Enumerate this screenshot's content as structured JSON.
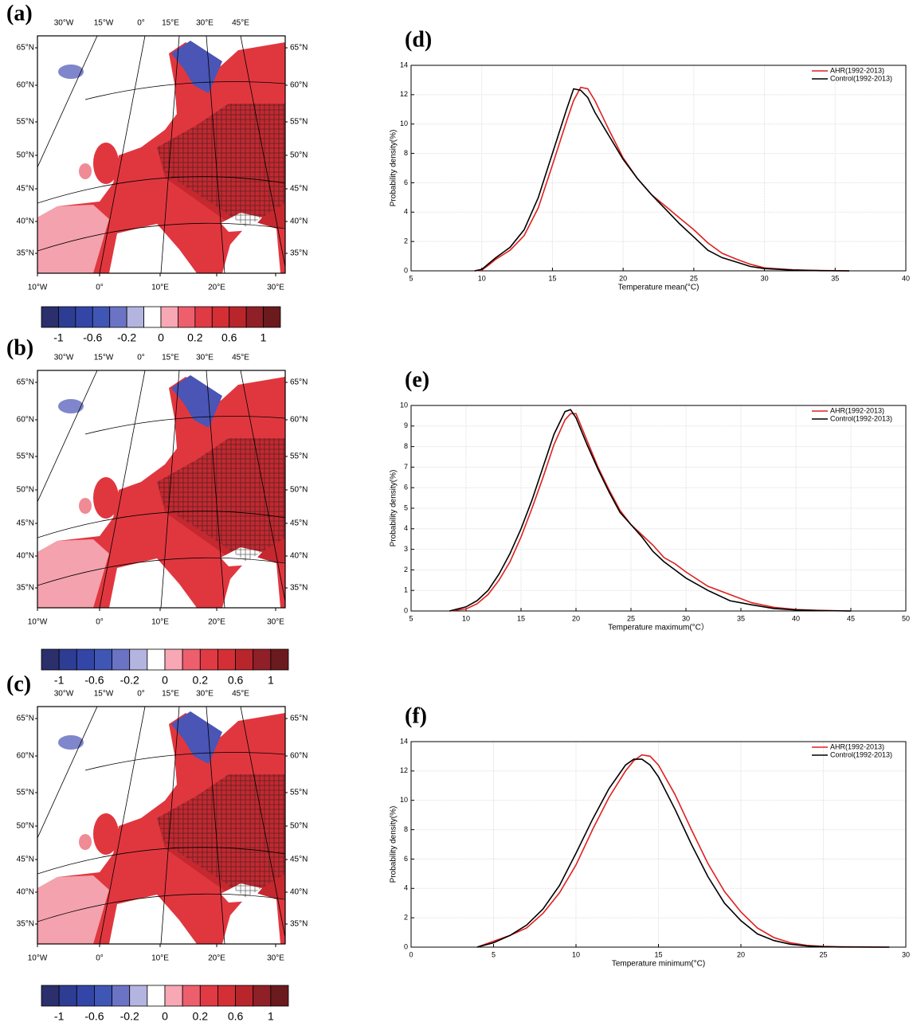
{
  "chart_data": [
    {
      "type": "map",
      "panel": "(a)",
      "lon_labels_top": [
        "30°W",
        "15°W",
        "0°",
        "15°E",
        "30°E",
        "45°E"
      ],
      "lon_labels_bottom": [
        "10°W",
        "0°",
        "10°E",
        "20°E",
        "30°E"
      ],
      "lat_labels": [
        "65°N",
        "60°N",
        "55°N",
        "50°N",
        "45°N",
        "40°N",
        "35°N"
      ],
      "colorbar": {
        "colors": [
          "#2b2f6b",
          "#2e3d94",
          "#3346a8",
          "#3f56b5",
          "#6b74c4",
          "#b4b4e0",
          "#ffffff",
          "#f7a8b4",
          "#ee5f6e",
          "#e03a44",
          "#d32f35",
          "#b8262c",
          "#8f2027",
          "#6b1a1e"
        ],
        "ticks": [
          -1,
          -0.6,
          -0.2,
          0,
          0.2,
          0.6,
          1
        ]
      }
    },
    {
      "type": "map",
      "panel": "(b)",
      "lon_labels_top": [
        "30°W",
        "15°W",
        "0°",
        "15°E",
        "30°E",
        "45°E"
      ],
      "lon_labels_bottom": [
        "10°W",
        "0°",
        "10°E",
        "20°E",
        "30°E"
      ],
      "lat_labels": [
        "65°N",
        "60°N",
        "55°N",
        "50°N",
        "45°N",
        "40°N",
        "35°N"
      ],
      "colorbar": {
        "colors": [
          "#2b2f6b",
          "#2e3d94",
          "#3346a8",
          "#3f56b5",
          "#6b74c4",
          "#b4b4e0",
          "#ffffff",
          "#f7a8b4",
          "#ee5f6e",
          "#e03a44",
          "#d32f35",
          "#b8262c",
          "#8f2027",
          "#6b1a1e"
        ],
        "ticks": [
          -1,
          -0.6,
          -0.2,
          0,
          0.2,
          0.6,
          1
        ]
      }
    },
    {
      "type": "map",
      "panel": "(c)",
      "lon_labels_top": [
        "30°W",
        "15°W",
        "0°",
        "15°E",
        "30°E",
        "45°E"
      ],
      "lon_labels_bottom": [
        "10°W",
        "0°",
        "10°E",
        "20°E",
        "30°E"
      ],
      "lat_labels": [
        "65°N",
        "60°N",
        "55°N",
        "50°N",
        "45°N",
        "40°N",
        "35°N"
      ],
      "colorbar": {
        "colors": [
          "#2b2f6b",
          "#2e3d94",
          "#3346a8",
          "#3f56b5",
          "#6b74c4",
          "#b4b4e0",
          "#ffffff",
          "#f7a8b4",
          "#ee5f6e",
          "#e03a44",
          "#d32f35",
          "#b8262c",
          "#8f2027",
          "#6b1a1e"
        ],
        "ticks": [
          -1,
          -0.6,
          -0.2,
          0,
          0.2,
          0.6,
          1
        ]
      }
    },
    {
      "type": "line",
      "panel": "(d)",
      "x_label": "Temperature mean(°C)",
      "y_label": "Probability density(%)",
      "x": [
        9.5,
        10,
        10.5,
        11,
        12,
        13,
        14,
        15,
        16,
        16.5,
        17,
        17.5,
        18,
        19,
        20,
        21,
        22,
        23,
        24,
        25,
        26,
        27,
        28,
        29,
        30,
        32,
        34,
        36
      ],
      "series": [
        {
          "name": "AHR(1992-2013)",
          "color": "#e02020",
          "values": [
            0,
            0.05,
            0.4,
            0.8,
            1.4,
            2.4,
            4.3,
            7.2,
            10.2,
            11.6,
            12.5,
            12.4,
            11.6,
            9.6,
            7.7,
            6.3,
            5.2,
            4.4,
            3.6,
            2.8,
            1.9,
            1.2,
            0.8,
            0.45,
            0.2,
            0.07,
            0.02,
            0
          ]
        },
        {
          "name": "Control(1992-2013)",
          "color": "#000000",
          "values": [
            0,
            0.1,
            0.5,
            0.9,
            1.6,
            2.8,
            5,
            8,
            11,
            12.4,
            12.3,
            11.8,
            10.8,
            9.2,
            7.6,
            6.3,
            5.2,
            4.2,
            3.2,
            2.3,
            1.4,
            0.9,
            0.6,
            0.3,
            0.15,
            0.05,
            0.01,
            0
          ]
        }
      ],
      "xlim": [
        5,
        40
      ],
      "xticks": [
        5,
        10,
        15,
        20,
        25,
        30,
        35,
        40
      ],
      "ylim": [
        0,
        14
      ],
      "yticks": [
        0,
        2,
        4,
        6,
        8,
        10,
        12,
        14
      ],
      "grid": true,
      "legend": "top-right"
    },
    {
      "type": "line",
      "panel": "(e)",
      "x_label": "Temperature maximum(°C）",
      "y_label": "Probability density(%)",
      "x": [
        8.5,
        10,
        11,
        12,
        13,
        14,
        15,
        16,
        17,
        18,
        19,
        19.5,
        20,
        21,
        22,
        23,
        24,
        25,
        26,
        27,
        28,
        29,
        30,
        32,
        34,
        36,
        38,
        40,
        42,
        45
      ],
      "series": [
        {
          "name": "AHR(1992-2013)",
          "color": "#e02020",
          "values": [
            0,
            0.1,
            0.35,
            0.8,
            1.5,
            2.4,
            3.6,
            5,
            6.5,
            8.1,
            9.3,
            9.6,
            9.6,
            8.3,
            7,
            5.9,
            4.9,
            4.2,
            3.7,
            3.2,
            2.6,
            2.3,
            1.9,
            1.2,
            0.8,
            0.4,
            0.18,
            0.07,
            0.03,
            0
          ]
        },
        {
          "name": "Control(1992-2013)",
          "color": "#000000",
          "values": [
            0,
            0.2,
            0.5,
            1,
            1.8,
            2.8,
            4,
            5.4,
            7,
            8.6,
            9.7,
            9.8,
            9.4,
            8.1,
            6.9,
            5.8,
            4.8,
            4.2,
            3.6,
            2.9,
            2.4,
            2,
            1.6,
            1,
            0.5,
            0.3,
            0.12,
            0.05,
            0.02,
            0
          ]
        }
      ],
      "xlim": [
        5,
        50
      ],
      "xticks": [
        5,
        10,
        15,
        20,
        25,
        30,
        35,
        40,
        45,
        50
      ],
      "ylim": [
        0,
        10
      ],
      "yticks": [
        0,
        1,
        2,
        3,
        4,
        5,
        6,
        7,
        8,
        9,
        10
      ],
      "grid": true,
      "legend": "top-right"
    },
    {
      "type": "line",
      "panel": "(f)",
      "x_label": "Temperature minimum(°C)",
      "y_label": "Probability density(%)",
      "x": [
        4,
        5,
        6,
        7,
        8,
        9,
        10,
        11,
        12,
        13,
        13.5,
        14,
        14.5,
        15,
        16,
        17,
        18,
        19,
        20,
        21,
        22,
        23,
        24,
        25,
        26,
        28,
        29
      ],
      "series": [
        {
          "name": "AHR(1992-2013)",
          "color": "#e02020",
          "values": [
            0,
            0.4,
            0.8,
            1.3,
            2.3,
            3.7,
            5.6,
            8,
            10.2,
            12,
            12.7,
            13.1,
            13,
            12.4,
            10.4,
            8,
            5.7,
            3.8,
            2.4,
            1.3,
            0.65,
            0.3,
            0.12,
            0.05,
            0.02,
            0.01,
            0
          ]
        },
        {
          "name": "Control(1992-2013)",
          "color": "#000000",
          "values": [
            0,
            0.3,
            0.8,
            1.5,
            2.6,
            4.2,
            6.4,
            8.7,
            10.8,
            12.4,
            12.8,
            12.8,
            12.4,
            11.6,
            9.4,
            7,
            4.8,
            3,
            1.8,
            0.9,
            0.45,
            0.2,
            0.08,
            0.03,
            0.01,
            0,
            0
          ]
        }
      ],
      "xlim": [
        0,
        30
      ],
      "xticks": [
        0,
        5,
        10,
        15,
        20,
        25,
        30
      ],
      "ylim": [
        0,
        14
      ],
      "yticks": [
        0,
        2,
        4,
        6,
        8,
        10,
        12,
        14
      ],
      "grid": true,
      "legend": "top-right"
    }
  ]
}
